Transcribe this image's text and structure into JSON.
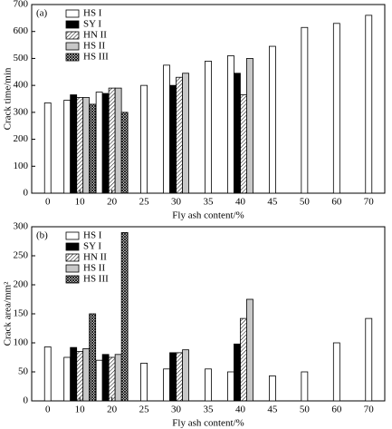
{
  "chart_data": [
    {
      "type": "bar",
      "panel_label": "(a)",
      "xlabel": "Fly ash content/%",
      "ylabel": "Crack time/min",
      "categories": [
        "0",
        "10",
        "20",
        "25",
        "30",
        "35",
        "40",
        "45",
        "50",
        "60",
        "70"
      ],
      "series": [
        {
          "name": "HS I",
          "color": "#ffffff",
          "values": [
            335,
            345,
            375,
            400,
            475,
            490,
            510,
            545,
            615,
            630,
            660
          ]
        },
        {
          "name": "SY I",
          "color": "#000000",
          "values": [
            null,
            365,
            370,
            null,
            400,
            null,
            445,
            null,
            null,
            null,
            null
          ]
        },
        {
          "name": "HN II",
          "color": "#ffffff",
          "hatch": "diagonal",
          "values": [
            null,
            355,
            390,
            null,
            430,
            null,
            365,
            null,
            null,
            null,
            null
          ]
        },
        {
          "name": "HS II",
          "color": "#c8c8c8",
          "values": [
            null,
            355,
            390,
            null,
            445,
            null,
            500,
            null,
            null,
            null,
            null
          ]
        },
        {
          "name": "HS III",
          "color": "#ffffff",
          "hatch": "cross",
          "values": [
            null,
            330,
            300,
            null,
            null,
            null,
            null,
            null,
            null,
            null,
            null
          ]
        }
      ],
      "ylim": [
        0,
        700
      ],
      "yticks": [
        0,
        100,
        200,
        300,
        400,
        500,
        600,
        700
      ],
      "legend": "upper left"
    },
    {
      "type": "bar",
      "panel_label": "(b)",
      "xlabel": "Fly ash content/%",
      "ylabel": "Crack area/mm²",
      "categories": [
        "0",
        "10",
        "20",
        "25",
        "30",
        "35",
        "40",
        "45",
        "50",
        "60",
        "70"
      ],
      "series": [
        {
          "name": "HS I",
          "color": "#ffffff",
          "values": [
            93,
            75,
            70,
            65,
            55,
            55,
            50,
            43,
            50,
            100,
            142
          ]
        },
        {
          "name": "SY I",
          "color": "#000000",
          "values": [
            null,
            92,
            80,
            null,
            83,
            null,
            98,
            null,
            null,
            null,
            null
          ]
        },
        {
          "name": "HN II",
          "color": "#ffffff",
          "hatch": "diagonal",
          "values": [
            null,
            85,
            75,
            null,
            83,
            null,
            142,
            null,
            null,
            null,
            null
          ]
        },
        {
          "name": "HS II",
          "color": "#c8c8c8",
          "values": [
            null,
            90,
            80,
            null,
            88,
            null,
            175,
            null,
            null,
            null,
            null
          ]
        },
        {
          "name": "HS III",
          "color": "#ffffff",
          "hatch": "cross",
          "values": [
            null,
            150,
            290,
            null,
            null,
            null,
            null,
            null,
            null,
            null,
            null
          ]
        }
      ],
      "ylim": [
        0,
        300
      ],
      "yticks": [
        0,
        50,
        100,
        150,
        200,
        250,
        300
      ],
      "legend": "upper left"
    }
  ]
}
